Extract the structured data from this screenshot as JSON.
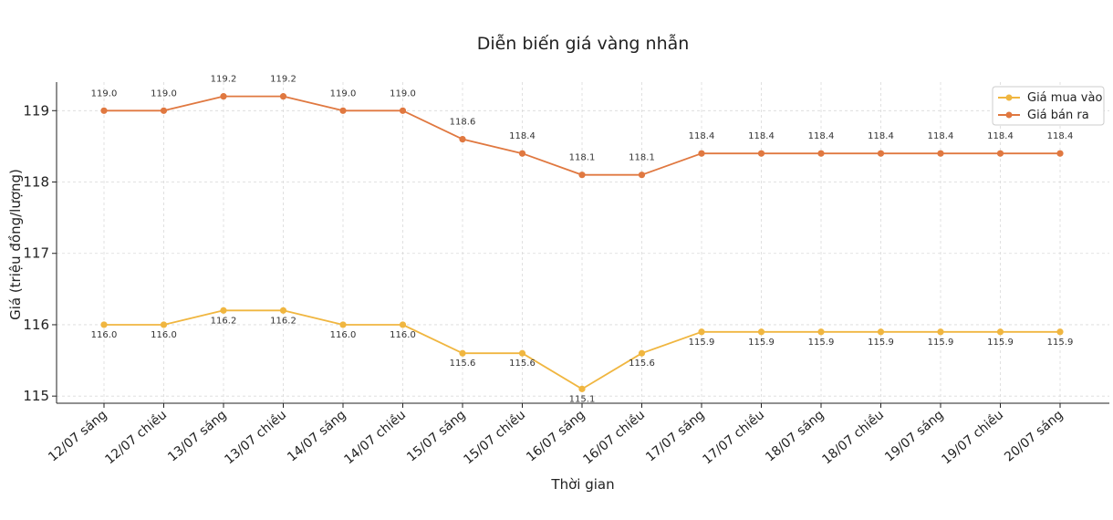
{
  "chart_data": {
    "type": "line",
    "title": "Diễn biến giá vàng nhẫn",
    "xlabel": "Thời gian",
    "ylabel": "Giá (triệu đồng/lượng)",
    "ylim": [
      114.9,
      119.4
    ],
    "yticks": [
      "115",
      "116",
      "117",
      "118",
      "119"
    ],
    "grid": true,
    "legend_position": "top-right",
    "categories": [
      "12/07 sáng",
      "12/07 chiều",
      "13/07 sáng",
      "13/07 chiều",
      "14/07 sáng",
      "14/07 chiều",
      "15/07 sáng",
      "15/07 chiều",
      "16/07 sáng",
      "16/07 chiều",
      "17/07 sáng",
      "17/07 chiều",
      "18/07 sáng",
      "18/07 chiều",
      "19/07 sáng",
      "19/07 chiều",
      "20/07 sáng"
    ],
    "series": [
      {
        "name": "Giá mua vào",
        "color": "#f0b640",
        "values": [
          116.0,
          116.0,
          116.2,
          116.2,
          116.0,
          116.0,
          115.6,
          115.6,
          115.1,
          115.6,
          115.9,
          115.9,
          115.9,
          115.9,
          115.9,
          115.9,
          115.9
        ],
        "labels": [
          "116.0",
          "116.0",
          "116.2",
          "116.2",
          "116.0",
          "116.0",
          "115.6",
          "115.6",
          "115.1",
          "115.6",
          "115.9",
          "115.9",
          "115.9",
          "115.9",
          "115.9",
          "115.9",
          "115.9"
        ]
      },
      {
        "name": "Giá bán ra",
        "color": "#e07840",
        "values": [
          119.0,
          119.0,
          119.2,
          119.2,
          119.0,
          119.0,
          118.6,
          118.4,
          118.1,
          118.1,
          118.4,
          118.4,
          118.4,
          118.4,
          118.4,
          118.4,
          118.4
        ],
        "labels": [
          "119.0",
          "119.0",
          "119.2",
          "119.2",
          "119.0",
          "119.0",
          "118.6",
          "118.4",
          "118.1",
          "118.1",
          "118.4",
          "118.4",
          "118.4",
          "118.4",
          "118.4",
          "118.4",
          "118.4"
        ]
      }
    ]
  }
}
